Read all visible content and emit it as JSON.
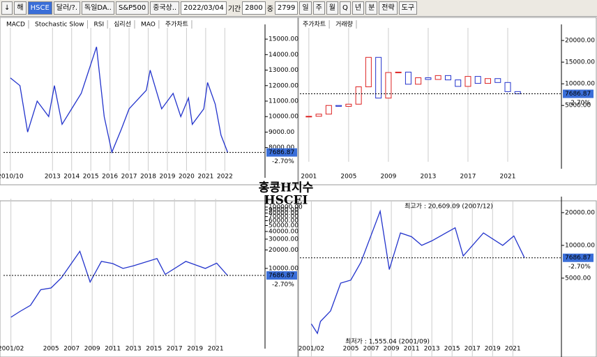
{
  "toolbar": {
    "items": [
      "↓",
      "해",
      "HSCE",
      "달러/?.",
      "독일DA..",
      "S&P500",
      "중국상..",
      "2022/03/04",
      "기간",
      "2800",
      "중",
      "2799",
      "일",
      "주",
      "월",
      "Q",
      "년",
      "분",
      "전략",
      "도구"
    ]
  },
  "title": "홍콩H지수",
  "subtitle": "HSCEI",
  "chart_data": [
    {
      "type": "line",
      "tabs": [
        "MACD",
        "Stochastic Slow",
        "RSI",
        "심리선",
        "MAO",
        "주가차트"
      ],
      "xlim": [
        2010.44,
        2024.1
      ],
      "ylim": [
        6500,
        15500
      ],
      "log": false,
      "yticks": [
        {
          "value": 8000,
          "label": "8000.00"
        },
        {
          "value": 9000,
          "label": "9000.00"
        },
        {
          "value": 10000,
          "label": "10000.00"
        },
        {
          "value": 11000,
          "label": "11000.00"
        },
        {
          "value": 12000,
          "label": "12000.00"
        },
        {
          "value": 13000,
          "label": "13000.00"
        },
        {
          "value": 14000,
          "label": "14000.00"
        },
        {
          "value": 15000,
          "label": "15000.00"
        }
      ],
      "xticks": [
        {
          "value": 2010.8,
          "label": "2010/10"
        },
        2013,
        2014,
        2015,
        2016,
        2017,
        2018,
        2019,
        2020,
        2021,
        2022
      ],
      "series": [
        {
          "color": "#2233cc",
          "x": [
            2010.8,
            2011.3,
            2011.7,
            2012.2,
            2012.8,
            2013.1,
            2013.5,
            2014,
            2014.5,
            2015.3,
            2015.7,
            2016.1,
            2016.6,
            2017,
            2017.9,
            2018.1,
            2018.7,
            2019.3,
            2019.7,
            2020.1,
            2020.3,
            2020.9,
            2021.1,
            2021.5,
            2021.8,
            2022.15
          ],
          "values": [
            12500,
            12000,
            9000,
            11000,
            10000,
            12000,
            9500,
            10500,
            11500,
            14500,
            10000,
            7700,
            9200,
            10500,
            11700,
            13000,
            10500,
            11500,
            10000,
            11200,
            9500,
            10500,
            12200,
            10800,
            8800,
            7686.87
          ]
        }
      ],
      "current": 7686.87,
      "change": "-2.70%"
    },
    {
      "type": "candle",
      "tabs": [
        "주가차트",
        "거래량"
      ],
      "xlim": [
        2000.1,
        2026.4
      ],
      "ylim": [
        -8000,
        22100
      ],
      "log": false,
      "yticks": [
        {
          "value": 5000,
          "label": "5000.00"
        },
        {
          "value": 10000,
          "label": "10000.00"
        },
        {
          "value": 15000,
          "label": "15000.00"
        },
        {
          "value": 20000,
          "label": "20000.00"
        }
      ],
      "xticks": [
        2001,
        2005,
        2009,
        2013,
        2017,
        2021
      ],
      "series": [
        {
          "color": "#dd2222",
          "x": [
            2001,
            2002,
            2003,
            2004,
            2005,
            2006,
            2007,
            2008,
            2009,
            2010,
            2011,
            2012,
            2013,
            2014,
            2015,
            2016,
            2017,
            2018,
            2019,
            2020,
            2021,
            2022
          ],
          "values": [
            2500,
            3000,
            5000,
            4800,
            5300,
            9300,
            16100,
            6700,
            12600,
            12700,
            9900,
            11400,
            11000,
            11900,
            10900,
            9400,
            11700,
            10100,
            11200,
            10300,
            8200,
            7686.87
          ]
        }
      ],
      "current": 7686.87,
      "change": "-2.70%"
    },
    {
      "type": "line",
      "xlim": [
        2000.38,
        2025.8
      ],
      "ylim": [
        640,
        120000
      ],
      "log": true,
      "yticks": [
        {
          "value": 10000,
          "label": "10000.00"
        },
        {
          "value": 20000,
          "label": "20000.00"
        },
        {
          "value": 30000,
          "label": "30000.00"
        },
        {
          "value": 40000,
          "label": "40000.00"
        },
        {
          "value": 50000,
          "label": "50000.00"
        },
        {
          "value": 60000,
          "label": "60000.00"
        },
        {
          "value": 70000,
          "label": "70000.00"
        },
        {
          "value": 80000,
          "label": "80000.00"
        },
        {
          "value": 90000,
          "label": "90000.00"
        },
        {
          "value": 100000,
          "label": "100000.00"
        }
      ],
      "xticks": [
        {
          "value": 2001.1,
          "label": "2001/02"
        },
        2005,
        2007,
        2009,
        2011,
        2013,
        2015,
        2017,
        2019,
        2021
      ],
      "series": [
        {
          "color": "#2233cc",
          "x": [
            2001.1,
            2002,
            2003,
            2004,
            2005,
            2006,
            2007.8,
            2008.8,
            2009.9,
            2011,
            2012,
            2013,
            2015.3,
            2016.1,
            2018.1,
            2020,
            2021.1,
            2022.15
          ],
          "values": [
            1600,
            2000,
            2500,
            4500,
            4800,
            7000,
            19000,
            6000,
            13000,
            12000,
            10000,
            11000,
            14500,
            8000,
            13000,
            10000,
            12200,
            7686.87
          ]
        }
      ],
      "current": 7686.87,
      "change": "-2.70%"
    },
    {
      "type": "line",
      "xlim": [
        1999.97,
        2025.8
      ],
      "ylim": [
        1045,
        24200
      ],
      "log": true,
      "yticks": [
        {
          "value": 5000,
          "label": "5000.00"
        },
        {
          "value": 10000,
          "label": "10000.00"
        },
        {
          "value": 20000,
          "label": "20000.00"
        }
      ],
      "xticks": [
        {
          "value": 2001.1,
          "label": "2001/02"
        },
        2005,
        2007,
        2009,
        2011,
        2013,
        2015,
        2017,
        2019,
        2021
      ],
      "series": [
        {
          "color": "#2233cc",
          "x": [
            2001.1,
            2001.7,
            2002,
            2003,
            2004,
            2005,
            2006,
            2007.9,
            2008.8,
            2009.9,
            2011,
            2012,
            2013,
            2015.3,
            2016.1,
            2018.1,
            2020,
            2021.1,
            2022.15
          ],
          "values": [
            1900,
            1555.04,
            2000,
            2500,
            4500,
            4800,
            7000,
            20609.09,
            6000,
            13000,
            12000,
            10000,
            11000,
            14500,
            8000,
            13000,
            10000,
            12200,
            7686.87
          ]
        }
      ],
      "annotations": [
        "최고가 : 20,609.09 (2007/12)",
        "최저가 : 1,555.04 (2001/09)"
      ],
      "current": 7686.87,
      "change": "-2.70%"
    }
  ]
}
